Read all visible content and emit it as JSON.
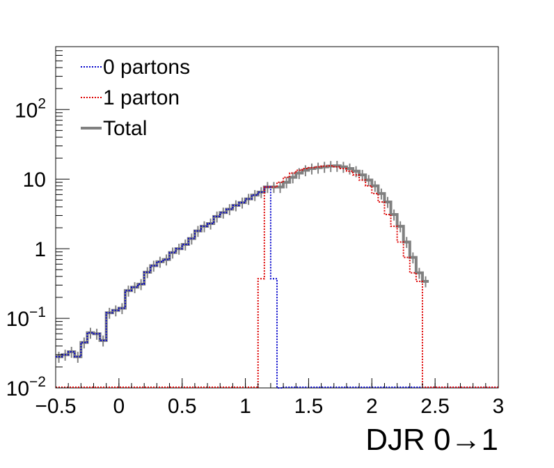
{
  "chart_data": {
    "type": "line",
    "title": "",
    "xlabel": "DJR 0→1",
    "ylabel": "",
    "xlim": [
      -0.5,
      3.0
    ],
    "ylim": [
      0.01,
      800
    ],
    "y_scale": "log",
    "x_tick_labels": [
      "−0.5",
      "0",
      "0.5",
      "1",
      "1.5",
      "2",
      "2.5",
      "3"
    ],
    "x_tick_values": [
      -0.5,
      0,
      0.5,
      1,
      1.5,
      2,
      2.5,
      3
    ],
    "y_tick_labels": [
      {
        "value": 0.01,
        "base": "10",
        "exp": "−2"
      },
      {
        "value": 0.1,
        "base": "10",
        "exp": "−1"
      },
      {
        "value": 1,
        "base": "1",
        "exp": ""
      },
      {
        "value": 10,
        "base": "10",
        "exp": ""
      },
      {
        "value": 100,
        "base": "10",
        "exp": "2"
      }
    ],
    "legend_position": "top-left",
    "bin_width": 0.05,
    "series": [
      {
        "name": "0 partons",
        "color": "#0000cc",
        "style": "dotted",
        "x_start": -0.5,
        "values": [
          0.028,
          0.03,
          0.033,
          0.028,
          0.045,
          0.062,
          0.06,
          0.048,
          0.12,
          0.13,
          0.14,
          0.25,
          0.28,
          0.31,
          0.46,
          0.57,
          0.65,
          0.7,
          0.88,
          1.0,
          1.15,
          1.4,
          1.8,
          2.1,
          2.3,
          2.9,
          3.3,
          3.7,
          4.2,
          4.6,
          5.2,
          5.9,
          6.5,
          7.7,
          0.37,
          0.01
        ]
      },
      {
        "name": "1 parton",
        "color": "#dd0000",
        "style": "dotted",
        "x_start": 1.1,
        "values": [
          0.37,
          7.7,
          7.7,
          9.0,
          10.6,
          12.2,
          13.4,
          14.2,
          14.6,
          15.0,
          15.4,
          15.5,
          15.0,
          14.2,
          13.0,
          11.5,
          9.7,
          8.0,
          6.2,
          4.7,
          3.1,
          2.1,
          1.25,
          0.75,
          0.45,
          0.34
        ]
      },
      {
        "name": "Total",
        "color": "#808080",
        "style": "solid",
        "x_start": -0.5,
        "values": [
          0.028,
          0.03,
          0.033,
          0.028,
          0.045,
          0.062,
          0.06,
          0.048,
          0.12,
          0.13,
          0.14,
          0.25,
          0.28,
          0.31,
          0.46,
          0.57,
          0.65,
          0.7,
          0.88,
          1.0,
          1.15,
          1.4,
          1.8,
          2.1,
          2.3,
          2.9,
          3.3,
          3.7,
          4.2,
          4.6,
          5.2,
          5.9,
          6.5,
          7.7,
          7.7,
          7.7,
          9.0,
          10.6,
          12.2,
          13.4,
          14.2,
          14.6,
          15.0,
          15.4,
          15.5,
          15.0,
          14.2,
          13.0,
          11.5,
          9.7,
          8.0,
          6.2,
          4.7,
          3.1,
          2.1,
          1.25,
          0.75,
          0.45,
          0.34
        ]
      }
    ]
  }
}
